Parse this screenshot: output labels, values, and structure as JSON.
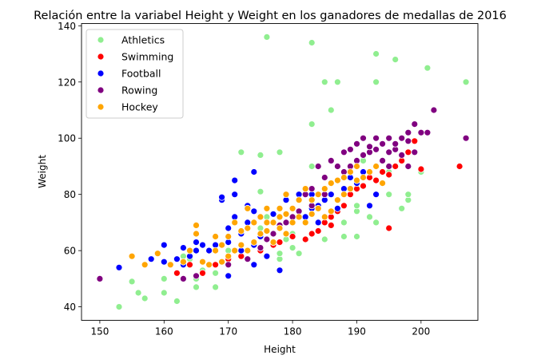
{
  "chart_data": {
    "type": "scatter",
    "title": "Relación entre la variabel Height y Weight en los ganadores de medallas de 2016",
    "xlabel": "Height",
    "ylabel": "Weight",
    "xlim": [
      147.15,
      208.85
    ],
    "ylim": [
      35.2,
      140.8
    ],
    "xticks": [
      150,
      160,
      170,
      180,
      190,
      200
    ],
    "yticks": [
      40,
      60,
      80,
      100,
      120,
      140
    ],
    "grid": false,
    "legend_position": "top-left",
    "series": [
      {
        "name": "Athletics",
        "color": "#90ee90",
        "points": [
          [
            153,
            40
          ],
          [
            155,
            49
          ],
          [
            156,
            45
          ],
          [
            157,
            43
          ],
          [
            160,
            45
          ],
          [
            160,
            50
          ],
          [
            162,
            42
          ],
          [
            162,
            52
          ],
          [
            163,
            58
          ],
          [
            164,
            57
          ],
          [
            165,
            47
          ],
          [
            165,
            50
          ],
          [
            166,
            53
          ],
          [
            168,
            47
          ],
          [
            168,
            52
          ],
          [
            170,
            55
          ],
          [
            170,
            60
          ],
          [
            172,
            58
          ],
          [
            172,
            95
          ],
          [
            174,
            62
          ],
          [
            175,
            68
          ],
          [
            175,
            81
          ],
          [
            175,
            94
          ],
          [
            176,
            136
          ],
          [
            176,
            72
          ],
          [
            178,
            57
          ],
          [
            178,
            59
          ],
          [
            178,
            95
          ],
          [
            179,
            64
          ],
          [
            180,
            61
          ],
          [
            180,
            66
          ],
          [
            181,
            59
          ],
          [
            183,
            75
          ],
          [
            183,
            80
          ],
          [
            183,
            90
          ],
          [
            183,
            105
          ],
          [
            183,
            134
          ],
          [
            185,
            64
          ],
          [
            185,
            120
          ],
          [
            186,
            110
          ],
          [
            187,
            120
          ],
          [
            188,
            65
          ],
          [
            188,
            70
          ],
          [
            188,
            80
          ],
          [
            190,
            65
          ],
          [
            190,
            74
          ],
          [
            190,
            76
          ],
          [
            191,
            92
          ],
          [
            192,
            72
          ],
          [
            193,
            70
          ],
          [
            193,
            120
          ],
          [
            193,
            130
          ],
          [
            195,
            80
          ],
          [
            195,
            88
          ],
          [
            196,
            128
          ],
          [
            197,
            75
          ],
          [
            198,
            78
          ],
          [
            198,
            80
          ],
          [
            200,
            88
          ],
          [
            201,
            125
          ],
          [
            207,
            120
          ]
        ]
      },
      {
        "name": "Swimming",
        "color": "#ff0000",
        "points": [
          [
            162,
            52
          ],
          [
            164,
            55
          ],
          [
            166,
            52
          ],
          [
            168,
            55
          ],
          [
            170,
            57
          ],
          [
            172,
            58
          ],
          [
            175,
            60
          ],
          [
            177,
            62
          ],
          [
            178,
            63
          ],
          [
            180,
            65
          ],
          [
            182,
            64
          ],
          [
            183,
            66
          ],
          [
            184,
            67
          ],
          [
            185,
            70
          ],
          [
            186,
            69
          ],
          [
            186,
            72
          ],
          [
            187,
            74
          ],
          [
            188,
            76
          ],
          [
            189,
            80
          ],
          [
            190,
            82
          ],
          [
            191,
            83
          ],
          [
            192,
            86
          ],
          [
            193,
            85
          ],
          [
            194,
            88
          ],
          [
            195,
            68
          ],
          [
            195,
            87
          ],
          [
            196,
            90
          ],
          [
            197,
            92
          ],
          [
            198,
            95
          ],
          [
            199,
            99
          ],
          [
            200,
            89
          ],
          [
            206,
            90
          ]
        ]
      },
      {
        "name": "Football",
        "color": "#0000ff",
        "points": [
          [
            153,
            54
          ],
          [
            158,
            57
          ],
          [
            160,
            56
          ],
          [
            160,
            62
          ],
          [
            162,
            57
          ],
          [
            163,
            55
          ],
          [
            163,
            61
          ],
          [
            164,
            58
          ],
          [
            165,
            60
          ],
          [
            165,
            63
          ],
          [
            166,
            62
          ],
          [
            167,
            60
          ],
          [
            168,
            62
          ],
          [
            169,
            78
          ],
          [
            170,
            51
          ],
          [
            170,
            63
          ],
          [
            170,
            68
          ],
          [
            171,
            72
          ],
          [
            171,
            80
          ],
          [
            171,
            85
          ],
          [
            172,
            60
          ],
          [
            172,
            66
          ],
          [
            173,
            70
          ],
          [
            173,
            76
          ],
          [
            174,
            55
          ],
          [
            174,
            62
          ],
          [
            174,
            74
          ],
          [
            175,
            65
          ],
          [
            175,
            72
          ],
          [
            176,
            58
          ],
          [
            176,
            70
          ],
          [
            177,
            73
          ],
          [
            178,
            53
          ],
          [
            178,
            68
          ],
          [
            178,
            75
          ],
          [
            179,
            70
          ],
          [
            179,
            78
          ],
          [
            180,
            72
          ],
          [
            180,
            75
          ],
          [
            181,
            78
          ],
          [
            181,
            80
          ],
          [
            182,
            72
          ],
          [
            182,
            82
          ],
          [
            183,
            75
          ],
          [
            183,
            80
          ],
          [
            184,
            70
          ],
          [
            184,
            76
          ],
          [
            185,
            78
          ],
          [
            186,
            80
          ],
          [
            186,
            84
          ],
          [
            187,
            75
          ],
          [
            188,
            82
          ],
          [
            189,
            86
          ],
          [
            190,
            84
          ],
          [
            191,
            88
          ],
          [
            192,
            76
          ],
          [
            193,
            80
          ],
          [
            174,
            88
          ],
          [
            169,
            79
          ]
        ]
      },
      {
        "name": "Rowing",
        "color": "#800080",
        "points": [
          [
            150,
            50
          ],
          [
            163,
            50
          ],
          [
            165,
            51
          ],
          [
            170,
            55
          ],
          [
            173,
            57
          ],
          [
            175,
            61
          ],
          [
            176,
            64
          ],
          [
            177,
            66
          ],
          [
            178,
            69
          ],
          [
            179,
            70
          ],
          [
            180,
            72
          ],
          [
            181,
            74
          ],
          [
            182,
            80
          ],
          [
            183,
            76
          ],
          [
            183,
            82
          ],
          [
            184,
            90
          ],
          [
            185,
            80
          ],
          [
            185,
            86
          ],
          [
            186,
            84
          ],
          [
            186,
            92
          ],
          [
            187,
            85
          ],
          [
            187,
            90
          ],
          [
            188,
            88
          ],
          [
            188,
            95
          ],
          [
            189,
            90
          ],
          [
            189,
            96
          ],
          [
            190,
            92
          ],
          [
            190,
            98
          ],
          [
            191,
            94
          ],
          [
            191,
            100
          ],
          [
            192,
            95
          ],
          [
            192,
            97
          ],
          [
            193,
            96
          ],
          [
            193,
            100
          ],
          [
            194,
            92
          ],
          [
            194,
            98
          ],
          [
            195,
            90
          ],
          [
            195,
            95
          ],
          [
            195,
            100
          ],
          [
            196,
            96
          ],
          [
            196,
            98
          ],
          [
            197,
            100
          ],
          [
            197,
            94
          ],
          [
            198,
            99
          ],
          [
            198,
            102
          ],
          [
            198,
            90
          ],
          [
            199,
            95
          ],
          [
            199,
            105
          ],
          [
            200,
            102
          ],
          [
            201,
            102
          ],
          [
            202,
            110
          ],
          [
            207,
            100
          ]
        ]
      },
      {
        "name": "Hockey",
        "color": "#ffa500",
        "points": [
          [
            155,
            58
          ],
          [
            157,
            55
          ],
          [
            159,
            59
          ],
          [
            161,
            55
          ],
          [
            163,
            56
          ],
          [
            164,
            60
          ],
          [
            165,
            66
          ],
          [
            165,
            69
          ],
          [
            166,
            56
          ],
          [
            167,
            55
          ],
          [
            168,
            60
          ],
          [
            168,
            65
          ],
          [
            169,
            56
          ],
          [
            169,
            62
          ],
          [
            170,
            58
          ],
          [
            170,
            65
          ],
          [
            171,
            60
          ],
          [
            171,
            70
          ],
          [
            172,
            62
          ],
          [
            172,
            67
          ],
          [
            173,
            60
          ],
          [
            173,
            68
          ],
          [
            173,
            75
          ],
          [
            174,
            63
          ],
          [
            174,
            70
          ],
          [
            175,
            66
          ],
          [
            175,
            72
          ],
          [
            176,
            67
          ],
          [
            176,
            75
          ],
          [
            177,
            63
          ],
          [
            177,
            70
          ],
          [
            178,
            68
          ],
          [
            178,
            72
          ],
          [
            178,
            75
          ],
          [
            179,
            66
          ],
          [
            179,
            80
          ],
          [
            180,
            70
          ],
          [
            180,
            75
          ],
          [
            181,
            72
          ],
          [
            181,
            78
          ],
          [
            182,
            82
          ],
          [
            183,
            73
          ],
          [
            183,
            78
          ],
          [
            184,
            75
          ],
          [
            184,
            80
          ],
          [
            185,
            72
          ],
          [
            185,
            82
          ],
          [
            186,
            74
          ],
          [
            186,
            84
          ],
          [
            187,
            78
          ],
          [
            187,
            85
          ],
          [
            188,
            80
          ],
          [
            188,
            86
          ],
          [
            189,
            82
          ],
          [
            189,
            88
          ],
          [
            190,
            85
          ],
          [
            190,
            90
          ],
          [
            191,
            86
          ],
          [
            192,
            88
          ],
          [
            193,
            90
          ],
          [
            194,
            84
          ],
          [
            176,
            70
          ],
          [
            179,
            73
          ],
          [
            182,
            70
          ]
        ]
      }
    ]
  }
}
